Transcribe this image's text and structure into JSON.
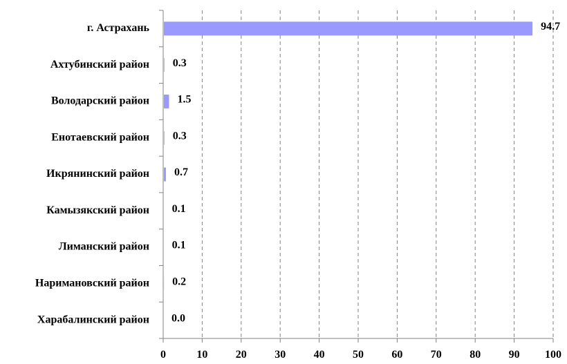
{
  "chart_data": {
    "type": "bar",
    "orientation": "horizontal",
    "categories": [
      "г. Астрахань",
      "Ахтубинский район",
      "Володарский район",
      "Енотаевский район",
      "Икрянинский район",
      "Камызякский район",
      "Лиманский район",
      "Наримановский район",
      "Харабалинский район"
    ],
    "values": [
      94.7,
      0.3,
      1.5,
      0.3,
      0.7,
      0.1,
      0.1,
      0.2,
      0.0
    ],
    "data_labels": [
      "94.7",
      "0.3",
      "1.5",
      "0.3",
      "0.7",
      "0.1",
      "0.1",
      "0.2",
      "0.0"
    ],
    "xlim": [
      0,
      100
    ],
    "x_ticks": [
      0,
      10,
      20,
      30,
      40,
      50,
      60,
      70,
      80,
      90,
      100
    ],
    "grid": "vertical dashed",
    "bar_color": "#9999FF",
    "grid_color": "#808080",
    "axis_color": "#808080",
    "title": "",
    "xlabel": "",
    "ylabel": ""
  }
}
